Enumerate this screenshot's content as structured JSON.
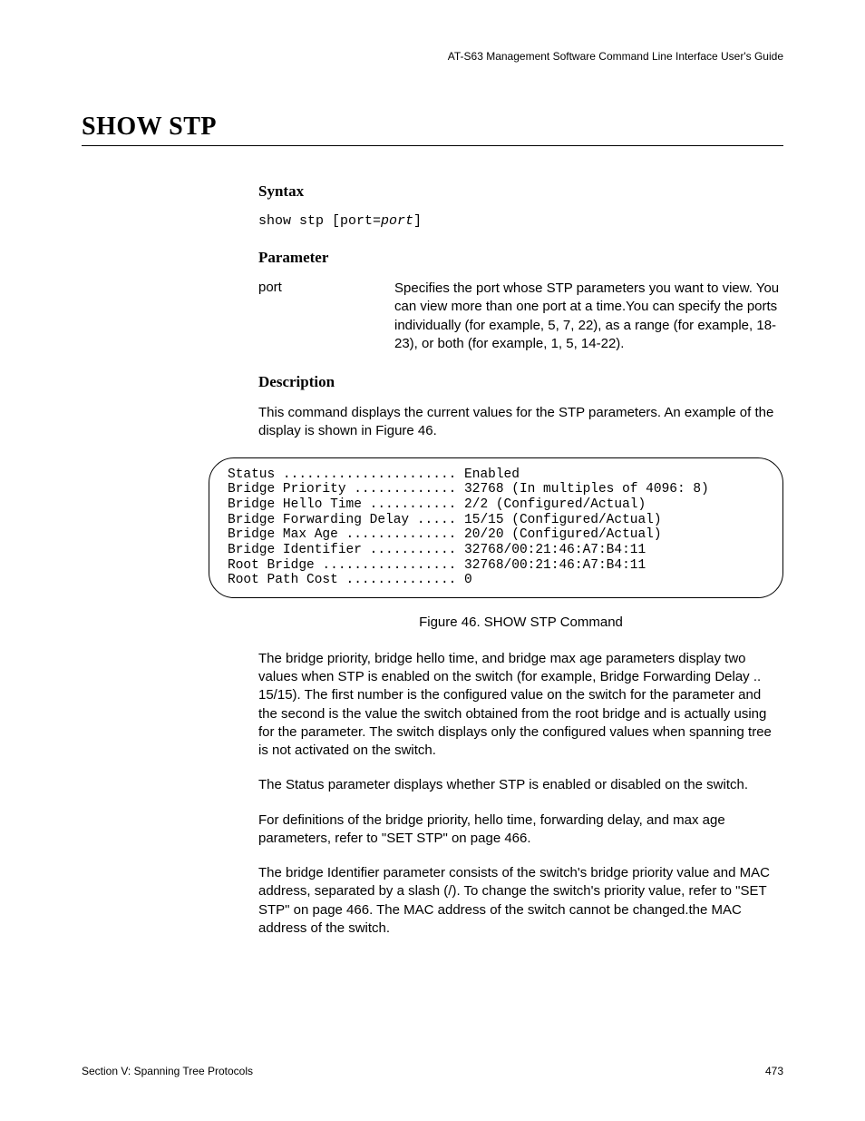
{
  "header": {
    "guide_title": "AT-S63 Management Software Command Line Interface User's Guide"
  },
  "title": "SHOW STP",
  "syntax": {
    "heading": "Syntax",
    "prefix": "show stp [port=",
    "param": "port",
    "suffix": "]"
  },
  "parameter": {
    "heading": "Parameter",
    "name": "port",
    "desc": "Specifies the port whose STP parameters you want to view. You can view more than one port at a time.You can specify the ports individually (for example, 5, 7, 22), as a range (for example, 18-23), or both (for example, 1, 5, 14-22)."
  },
  "description": {
    "heading": "Description",
    "intro": "This command displays the current values for the STP parameters. An example of the display is shown in Figure 46."
  },
  "figure": {
    "lines": [
      "Status ...................... Enabled",
      "Bridge Priority ............. 32768 (In multiples of 4096: 8)",
      "Bridge Hello Time ........... 2/2 (Configured/Actual)",
      "Bridge Forwarding Delay ..... 15/15 (Configured/Actual)",
      "Bridge Max Age .............. 20/20 (Configured/Actual)",
      "Bridge Identifier ........... 32768/00:21:46:A7:B4:11",
      "Root Bridge ................. 32768/00:21:46:A7:B4:11",
      "Root Path Cost .............. 0"
    ],
    "caption": "Figure 46. SHOW STP Command"
  },
  "body": {
    "p1": "The bridge priority, bridge hello time, and bridge max age parameters display two values when STP is enabled on the switch (for example, Bridge Forwarding Delay .. 15/15). The first number is the configured value on the switch for the parameter and the second is the value the switch obtained from the root bridge and is actually using for the parameter. The switch displays only the configured values when spanning tree is not activated on the switch.",
    "p2": "The Status parameter displays whether STP is enabled or disabled on the switch.",
    "p3": "For definitions of the bridge priority, hello time, forwarding delay, and max age parameters, refer to \"SET STP\" on page 466.",
    "p4": "The bridge Identifier parameter consists of the switch's bridge priority value and MAC address, separated by a slash (/). To change the switch's priority value, refer to \"SET STP\" on page 466. The MAC address of the switch cannot be changed.the MAC address of the switch."
  },
  "footer": {
    "section": "Section V: Spanning Tree Protocols",
    "page": "473"
  }
}
